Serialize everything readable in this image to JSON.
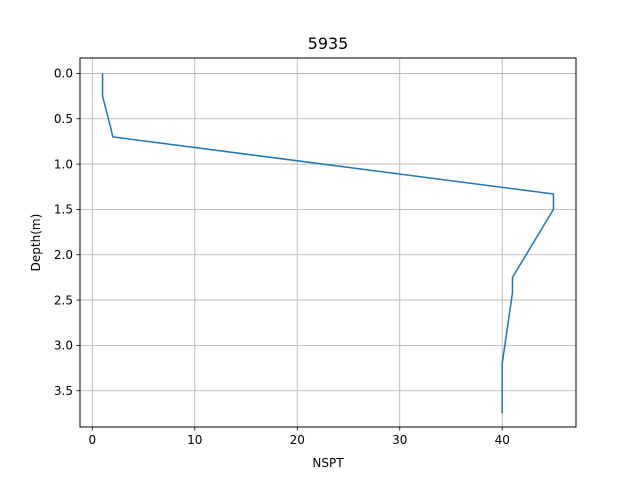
{
  "chart_data": {
    "type": "line",
    "title": "5935",
    "xlabel": "NSPT",
    "ylabel": "Depth(m)",
    "xlim": [
      -1.2,
      47.2
    ],
    "ylim": [
      3.9,
      -0.17
    ],
    "y_inverted": true,
    "grid": true,
    "xticks": [
      0,
      10,
      20,
      30,
      40
    ],
    "yticks": [
      0.0,
      0.5,
      1.0,
      1.5,
      2.0,
      2.5,
      3.0,
      3.5
    ],
    "xtick_labels": [
      "0",
      "10",
      "20",
      "30",
      "40"
    ],
    "ytick_labels": [
      "0.0",
      "0.5",
      "1.0",
      "1.5",
      "2.0",
      "2.5",
      "3.0",
      "3.5"
    ],
    "series": [
      {
        "color": "#1f77b4",
        "points": [
          {
            "x": 1,
            "y": 0.0
          },
          {
            "x": 1,
            "y": 0.25
          },
          {
            "x": 1.8,
            "y": 0.6
          },
          {
            "x": 2,
            "y": 0.7
          },
          {
            "x": 45,
            "y": 1.33
          },
          {
            "x": 45,
            "y": 1.5
          },
          {
            "x": 41,
            "y": 2.25
          },
          {
            "x": 41,
            "y": 2.42
          },
          {
            "x": 40,
            "y": 3.2
          },
          {
            "x": 40,
            "y": 3.75
          }
        ]
      }
    ]
  }
}
